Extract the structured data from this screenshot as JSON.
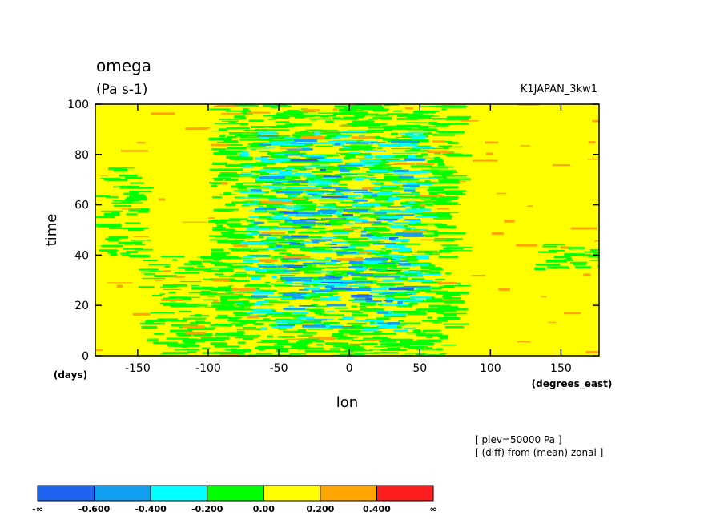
{
  "title": "omega",
  "units": "(Pa s-1)",
  "run_name": "K1JAPAN_3kw1",
  "notes": [
    "[ plev=50000 Pa ]",
    "[ (diff) from (mean) zonal ]"
  ],
  "chart_data": {
    "type": "heatmap",
    "xlabel": "lon",
    "xunit": "(degrees_east)",
    "ylabel": "time",
    "yunit": "(days)",
    "xlim": [
      -180,
      177
    ],
    "ylim": [
      0,
      100
    ],
    "xticks": [
      -150,
      -100,
      -50,
      0,
      50,
      100,
      150
    ],
    "yticks": [
      0,
      20,
      40,
      60,
      80,
      100
    ],
    "colorbar": {
      "levels": [
        "-∞",
        "-0.600",
        "-0.400",
        "-0.200",
        "0.00",
        "0.200",
        "0.400",
        "∞"
      ],
      "colors": [
        "#1e64f0",
        "#14a0f0",
        "#00ffff",
        "#00ff00",
        "#ffff00",
        "#ffa500",
        "#ff1e1e"
      ]
    },
    "regions": [
      {
        "xmin": -180,
        "xmax": -150,
        "ymin": 40,
        "ymax": 75,
        "class": 3,
        "density": 0.45
      },
      {
        "xmin": -150,
        "xmax": -100,
        "ymin": 0,
        "ymax": 40,
        "class": 3,
        "density": 0.4
      },
      {
        "xmin": -100,
        "xmax": 70,
        "ymin": 0,
        "ymax": 100,
        "class": 3,
        "density": 0.55
      },
      {
        "xmin": -80,
        "xmax": 50,
        "ymin": 10,
        "ymax": 90,
        "class": 2,
        "density": 0.25
      },
      {
        "xmin": -70,
        "xmax": 40,
        "ymin": 10,
        "ymax": 90,
        "class": 1,
        "density": 0.1
      },
      {
        "xmin": -50,
        "xmax": 30,
        "ymin": 20,
        "ymax": 85,
        "class": 0,
        "density": 0.05
      },
      {
        "xmin": 130,
        "xmax": 177,
        "ymin": 35,
        "ymax": 45,
        "class": 3,
        "density": 0.45
      },
      {
        "xmin": -180,
        "xmax": 177,
        "ymin": 0,
        "ymax": 100,
        "class": 5,
        "density": 0.02
      }
    ]
  }
}
